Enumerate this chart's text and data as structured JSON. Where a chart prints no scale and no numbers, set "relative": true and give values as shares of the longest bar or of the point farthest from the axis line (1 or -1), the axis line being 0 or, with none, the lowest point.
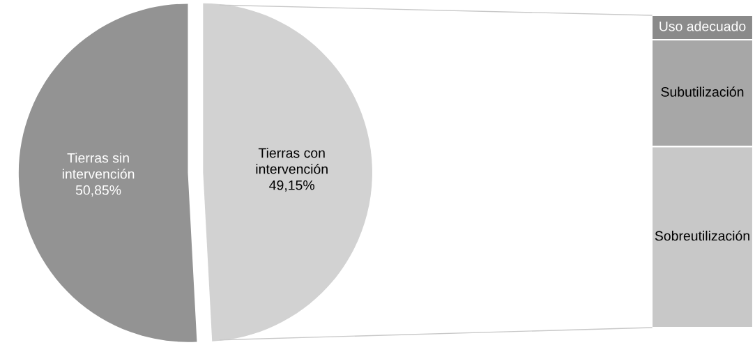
{
  "chart_data": [
    {
      "type": "pie",
      "categories": [
        "Tierras sin intervención",
        "Tierras con intervención"
      ],
      "values": [
        50.85,
        49.15
      ],
      "value_labels": [
        "50,85%",
        "49,15%"
      ],
      "colors": [
        "#939393",
        "#d2d2d2"
      ]
    },
    {
      "type": "bar",
      "stacked": true,
      "relative": true,
      "categories": [
        null
      ],
      "series": [
        {
          "name": "Sobreutilización",
          "color": "#c8c8c8",
          "values": [
            0.58
          ]
        },
        {
          "name": "Subutilización",
          "color": "#a7a7a7",
          "values": [
            0.342
          ]
        },
        {
          "name": "Uso adecuado",
          "color": "#8a8a8a",
          "values": [
            0.078
          ]
        }
      ]
    }
  ]
}
